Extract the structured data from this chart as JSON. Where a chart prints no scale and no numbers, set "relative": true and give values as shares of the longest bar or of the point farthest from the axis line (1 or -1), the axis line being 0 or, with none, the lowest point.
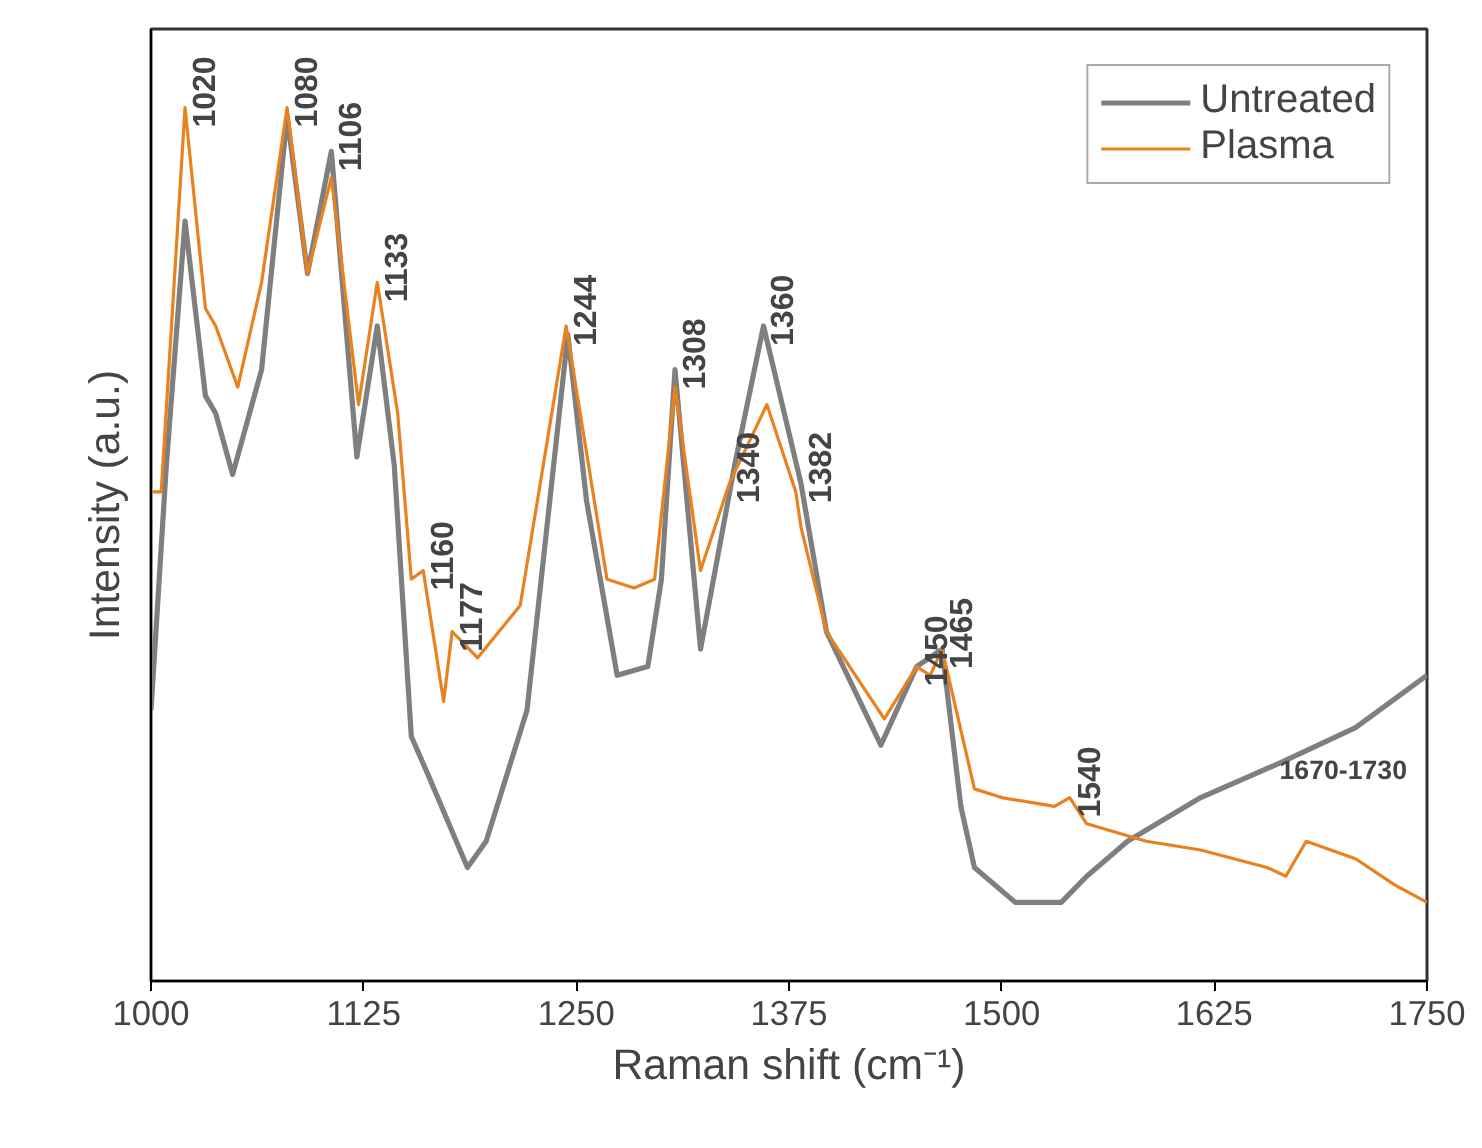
{
  "chart_data": {
    "type": "line",
    "relative": true,
    "xlabel": "Raman shift (cm⁻¹)",
    "ylabel": "Intensity (a.u.)",
    "xlim": [
      1000,
      1750
    ],
    "xticks": [
      1000,
      1125,
      1250,
      1375,
      1500,
      1625,
      1750
    ],
    "tick_labels": "x",
    "grid": false,
    "legend": "top right",
    "line_style": "solid",
    "marker": "none",
    "series": [
      {
        "name": "Untreated",
        "color": "#7f7f7f",
        "x": [
          1000,
          1009,
          1020,
          1032,
          1038,
          1048,
          1065,
          1080,
          1092,
          1106,
          1121,
          1133,
          1143,
          1153,
          1162,
          1186,
          1197,
          1221,
          1245,
          1256,
          1274,
          1292,
          1300,
          1308,
          1323,
          1343,
          1360,
          1382,
          1397,
          1429,
          1450,
          1465,
          1476,
          1484,
          1508,
          1535,
          1550,
          1574,
          1617,
          1664,
          1708,
          1750
        ],
        "values": [
          0.31,
          0.59,
          0.87,
          0.67,
          0.65,
          0.58,
          0.7,
          0.99,
          0.81,
          0.95,
          0.6,
          0.75,
          0.59,
          0.28,
          0.24,
          0.13,
          0.16,
          0.31,
          0.74,
          0.55,
          0.35,
          0.36,
          0.46,
          0.7,
          0.38,
          0.59,
          0.75,
          0.57,
          0.4,
          0.27,
          0.36,
          0.38,
          0.2,
          0.13,
          0.09,
          0.09,
          0.12,
          0.16,
          0.21,
          0.25,
          0.29,
          0.35
        ]
      },
      {
        "name": "Plasma",
        "color": "#e8821e",
        "x": [
          1000,
          1006,
          1020,
          1032,
          1038,
          1051,
          1065,
          1080,
          1092,
          1106,
          1122,
          1133,
          1145,
          1153,
          1160,
          1172,
          1177,
          1192,
          1217,
          1244,
          1268,
          1284,
          1296,
          1308,
          1323,
          1340,
          1362,
          1379,
          1382,
          1397,
          1431,
          1450,
          1458,
          1465,
          1484,
          1500,
          1531,
          1540,
          1550,
          1585,
          1617,
          1656,
          1667,
          1679,
          1708,
          1731,
          1750
        ],
        "values": [
          0.56,
          0.56,
          1.0,
          0.77,
          0.75,
          0.68,
          0.8,
          1.0,
          0.81,
          0.92,
          0.66,
          0.8,
          0.65,
          0.46,
          0.47,
          0.32,
          0.4,
          0.37,
          0.43,
          0.75,
          0.46,
          0.45,
          0.46,
          0.68,
          0.47,
          0.57,
          0.66,
          0.56,
          0.52,
          0.4,
          0.3,
          0.36,
          0.35,
          0.38,
          0.22,
          0.21,
          0.2,
          0.21,
          0.18,
          0.16,
          0.15,
          0.13,
          0.12,
          0.16,
          0.14,
          0.11,
          0.09
        ]
      }
    ],
    "annotations": [
      {
        "text": "1020",
        "x": 1020,
        "y": 1.0
      },
      {
        "text": "1080",
        "x": 1080,
        "y": 1.0
      },
      {
        "text": "1106",
        "x": 1106,
        "y": 0.95
      },
      {
        "text": "1133",
        "x": 1133,
        "y": 0.8
      },
      {
        "text": "1160",
        "x": 1160,
        "y": 0.47
      },
      {
        "text": "1177",
        "x": 1177,
        "y": 0.4
      },
      {
        "text": "1244",
        "x": 1244,
        "y": 0.75
      },
      {
        "text": "1308",
        "x": 1308,
        "y": 0.7
      },
      {
        "text": "1340",
        "x": 1340,
        "y": 0.57
      },
      {
        "text": "1360",
        "x": 1360,
        "y": 0.75
      },
      {
        "text": "1382",
        "x": 1382,
        "y": 0.57
      },
      {
        "text": "1450",
        "x": 1450,
        "y": 0.36
      },
      {
        "text": "1465",
        "x": 1465,
        "y": 0.38
      },
      {
        "text": "1540",
        "x": 1540,
        "y": 0.21
      },
      "1670-1730"
    ]
  }
}
